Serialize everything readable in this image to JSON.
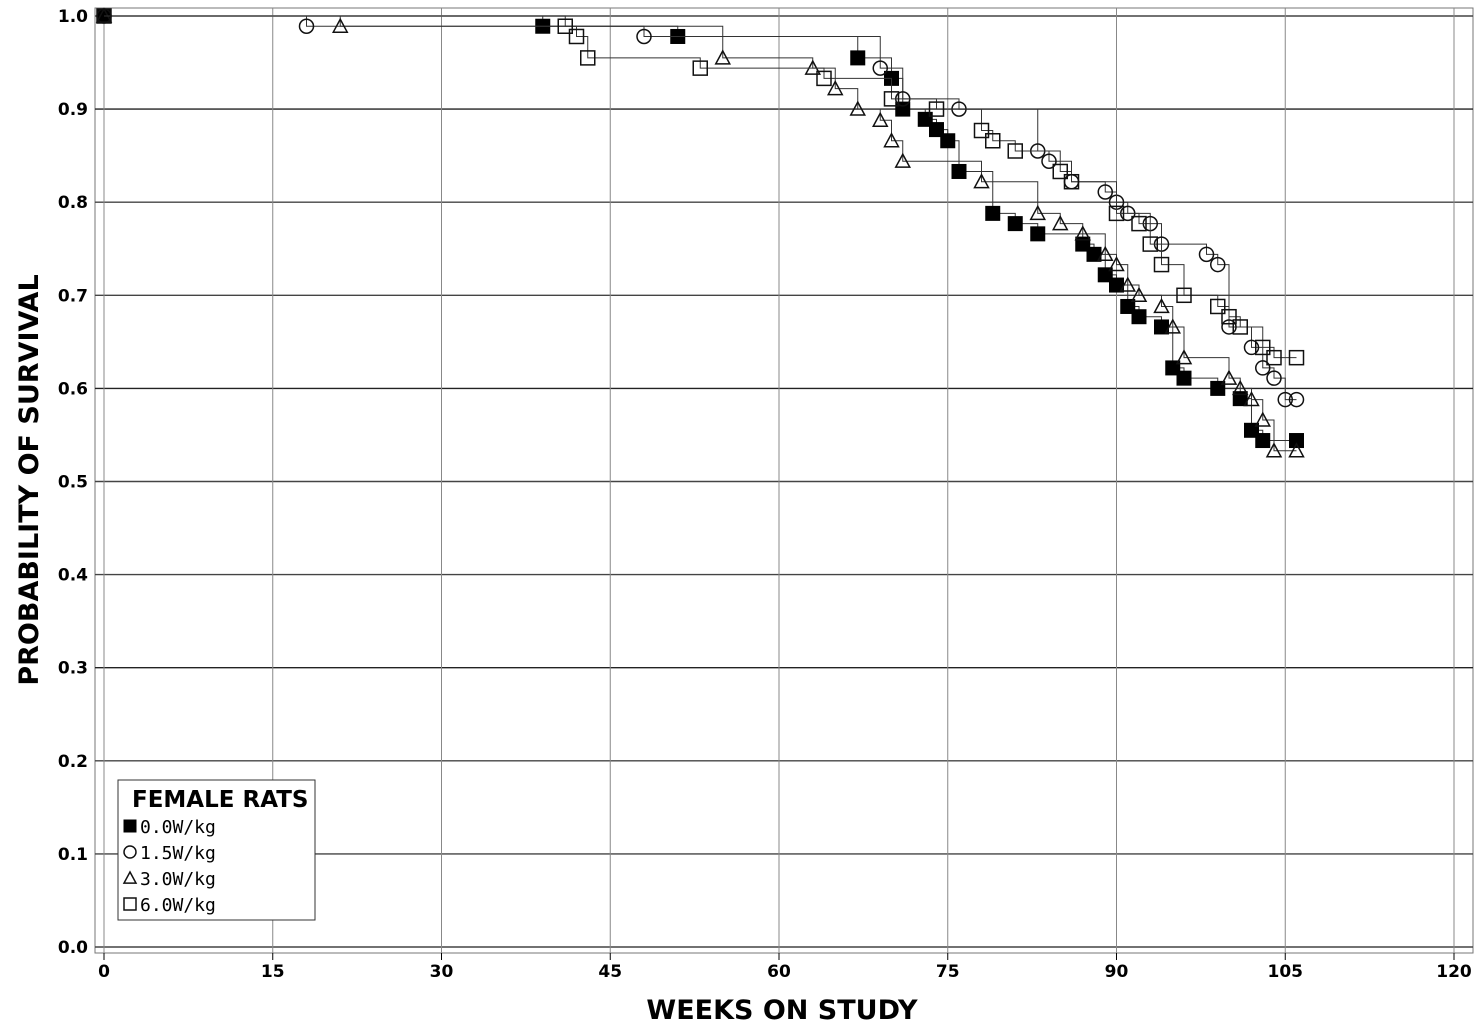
{
  "chart_data": {
    "type": "line",
    "subtype": "kaplan-meier step",
    "xlabel": "WEEKS ON STUDY",
    "ylabel": "PROBABILITY OF SURVIVAL",
    "xlim": [
      0,
      120
    ],
    "ylim": [
      0,
      1
    ],
    "xticks": [
      "0",
      "15",
      "30",
      "45",
      "60",
      "75",
      "90",
      "105",
      "120"
    ],
    "yticks": [
      "0.0",
      "0.1",
      "0.2",
      "0.3",
      "0.4",
      "0.5",
      "0.6",
      "0.7",
      "0.8",
      "0.9",
      "1.0"
    ],
    "grid": true,
    "legend": {
      "title": "FEMALE RATS",
      "position": "bottom-left",
      "entries": [
        "0.0W/kg",
        "1.5W/kg",
        "3.0W/kg",
        "6.0W/kg"
      ]
    },
    "series": [
      {
        "name": "0.0W/kg",
        "marker": "filled-square",
        "x": [
          0,
          39,
          51,
          67,
          70,
          71,
          73,
          74,
          75,
          76,
          79,
          81,
          83,
          87,
          88,
          89,
          90,
          91,
          92,
          94,
          95,
          96,
          99,
          101,
          102,
          103,
          106
        ],
        "y": [
          1.0,
          0.989,
          0.978,
          0.955,
          0.933,
          0.9,
          0.889,
          0.878,
          0.866,
          0.833,
          0.788,
          0.777,
          0.766,
          0.755,
          0.744,
          0.722,
          0.711,
          0.688,
          0.677,
          0.666,
          0.622,
          0.611,
          0.6,
          0.589,
          0.555,
          0.544,
          0.544
        ]
      },
      {
        "name": "1.5W/kg",
        "marker": "circle",
        "x": [
          0,
          18,
          48,
          69,
          71,
          76,
          83,
          84,
          86,
          89,
          90,
          91,
          93,
          94,
          98,
          99,
          100,
          102,
          103,
          104,
          105,
          106
        ],
        "y": [
          1.0,
          0.989,
          0.978,
          0.944,
          0.911,
          0.9,
          0.855,
          0.844,
          0.822,
          0.811,
          0.8,
          0.788,
          0.777,
          0.755,
          0.744,
          0.733,
          0.666,
          0.644,
          0.622,
          0.611,
          0.588,
          0.588
        ]
      },
      {
        "name": "3.0W/kg",
        "marker": "triangle",
        "x": [
          0,
          21,
          55,
          63,
          65,
          67,
          69,
          70,
          71,
          78,
          83,
          85,
          87,
          89,
          90,
          91,
          92,
          94,
          95,
          96,
          100,
          101,
          102,
          103,
          104,
          106
        ],
        "y": [
          1.0,
          0.989,
          0.955,
          0.944,
          0.922,
          0.9,
          0.888,
          0.866,
          0.844,
          0.822,
          0.788,
          0.777,
          0.766,
          0.744,
          0.733,
          0.711,
          0.7,
          0.688,
          0.666,
          0.633,
          0.611,
          0.6,
          0.588,
          0.566,
          0.533,
          0.533
        ]
      },
      {
        "name": "6.0W/kg",
        "marker": "square",
        "x": [
          0,
          41,
          42,
          43,
          53,
          64,
          70,
          74,
          78,
          79,
          81,
          85,
          86,
          90,
          92,
          93,
          94,
          96,
          99,
          100,
          101,
          103,
          104,
          106
        ],
        "y": [
          1.0,
          0.989,
          0.978,
          0.955,
          0.944,
          0.933,
          0.911,
          0.9,
          0.877,
          0.866,
          0.855,
          0.833,
          0.822,
          0.788,
          0.777,
          0.755,
          0.733,
          0.7,
          0.688,
          0.677,
          0.666,
          0.644,
          0.633,
          0.633
        ]
      }
    ]
  }
}
